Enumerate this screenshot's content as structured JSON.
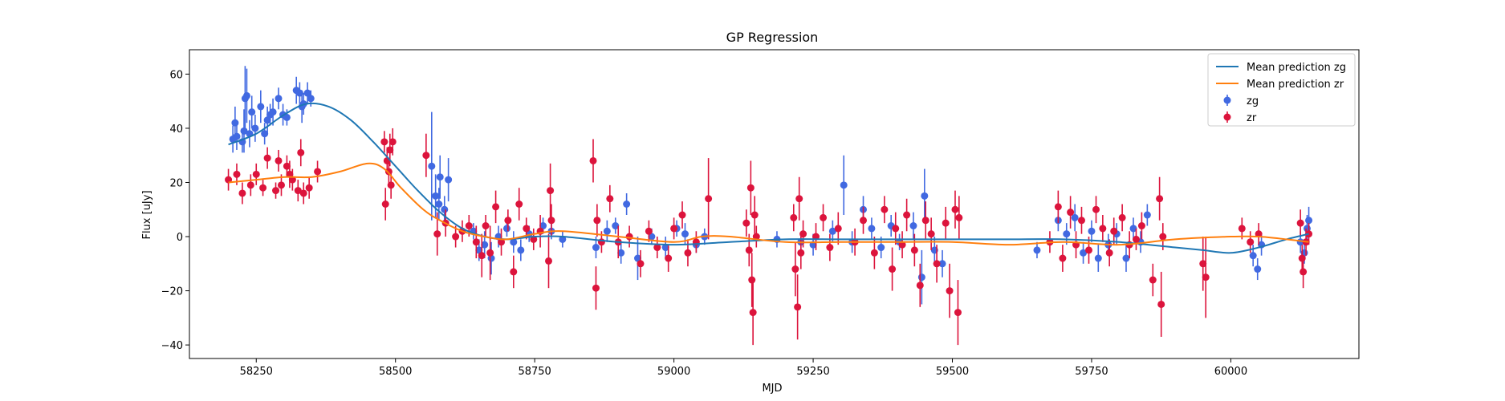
{
  "chart_data": {
    "type": "scatter",
    "title": "GP Regression",
    "xlabel": "MJD",
    "ylabel": "Flux [uJy]",
    "xlim": [
      58130,
      60230
    ],
    "ylim": [
      -45,
      69
    ],
    "xticks": [
      58250,
      58500,
      58750,
      59000,
      59250,
      59500,
      59750,
      60000
    ],
    "yticks": [
      -40,
      -20,
      0,
      20,
      40,
      60
    ],
    "legend_position": "top-right",
    "grid": false,
    "legend": [
      "Mean prediction zg",
      "Mean prediction zr",
      "zg",
      "zr"
    ],
    "lines": [
      {
        "name": "Mean prediction zg",
        "color": "#1f77b4",
        "x": [
          58200,
          58250,
          58300,
          58340,
          58380,
          58420,
          58460,
          58500,
          58540,
          58580,
          58620,
          58660,
          58700,
          58750,
          58800,
          58900,
          59000,
          59100,
          59200,
          59300,
          59400,
          59500,
          59600,
          59700,
          59800,
          59900,
          59950,
          60000,
          60050,
          60100,
          60140
        ],
        "y": [
          34,
          38,
          45,
          49,
          48,
          43,
          35,
          26,
          17,
          9,
          3,
          0,
          -1,
          0,
          0,
          -2,
          -3,
          -2,
          -1,
          -1,
          -1,
          -1,
          -1,
          -1,
          -2,
          -4,
          -5,
          -6,
          -4,
          -1,
          1
        ]
      },
      {
        "name": "Mean prediction zr",
        "color": "#ff7f0e",
        "x": [
          58200,
          58250,
          58300,
          58350,
          58400,
          58450,
          58480,
          58510,
          58550,
          58580,
          58620,
          58660,
          58700,
          58750,
          58800,
          58900,
          59000,
          59050,
          59100,
          59200,
          59300,
          59400,
          59500,
          59600,
          59700,
          59800,
          59900,
          60000,
          60050,
          60100,
          60140
        ],
        "y": [
          20,
          21,
          22,
          22,
          24,
          27,
          25,
          18,
          10,
          6,
          2,
          0,
          -1,
          1,
          2,
          0,
          -2,
          0,
          0,
          -2,
          -2,
          -2,
          -2,
          -3,
          -2,
          -3,
          -1,
          0,
          0,
          -1,
          -2
        ]
      }
    ],
    "series": [
      {
        "name": "zg",
        "color": "#4169e1",
        "points": [
          [
            58208,
            36,
            5
          ],
          [
            58212,
            42,
            6
          ],
          [
            58215,
            37,
            5
          ],
          [
            58225,
            35,
            4
          ],
          [
            58228,
            39,
            8
          ],
          [
            58230,
            51,
            12
          ],
          [
            58233,
            52,
            10
          ],
          [
            58238,
            38,
            5
          ],
          [
            58242,
            46,
            6
          ],
          [
            58248,
            40,
            5
          ],
          [
            58258,
            48,
            6
          ],
          [
            58265,
            38,
            4
          ],
          [
            58270,
            43,
            5
          ],
          [
            58275,
            45,
            4
          ],
          [
            58280,
            46,
            5
          ],
          [
            58290,
            51,
            4
          ],
          [
            58298,
            45,
            4
          ],
          [
            58305,
            44,
            3
          ],
          [
            58322,
            54,
            5
          ],
          [
            58328,
            53,
            4
          ],
          [
            58332,
            48,
            6
          ],
          [
            58335,
            49,
            4
          ],
          [
            58342,
            53,
            4
          ],
          [
            58348,
            51,
            3
          ],
          [
            58580,
            22,
            8
          ],
          [
            58565,
            26,
            20
          ],
          [
            58572,
            15,
            8
          ],
          [
            58578,
            12,
            6
          ],
          [
            58588,
            10,
            5
          ],
          [
            58595,
            21,
            8
          ],
          [
            58640,
            2,
            3
          ],
          [
            58650,
            -5,
            4
          ],
          [
            58660,
            -3,
            5
          ],
          [
            58672,
            -8,
            6
          ],
          [
            58685,
            0,
            4
          ],
          [
            58700,
            3,
            3
          ],
          [
            58712,
            -2,
            4
          ],
          [
            58725,
            -5,
            4
          ],
          [
            58740,
            1,
            3
          ],
          [
            58765,
            4,
            3
          ],
          [
            58780,
            2,
            3
          ],
          [
            58800,
            -1,
            3
          ],
          [
            58860,
            -4,
            4
          ],
          [
            58880,
            2,
            4
          ],
          [
            58895,
            4,
            3
          ],
          [
            58905,
            -6,
            4
          ],
          [
            58915,
            12,
            4
          ],
          [
            58935,
            -8,
            8
          ],
          [
            58960,
            0,
            3
          ],
          [
            58985,
            -4,
            4
          ],
          [
            59005,
            3,
            3
          ],
          [
            59020,
            1,
            4
          ],
          [
            59040,
            -3,
            3
          ],
          [
            59055,
            0,
            3
          ],
          [
            59185,
            -1,
            3
          ],
          [
            59228,
            -2,
            3
          ],
          [
            59250,
            -3,
            4
          ],
          [
            59285,
            2,
            4
          ],
          [
            59305,
            19,
            11
          ],
          [
            59320,
            -2,
            4
          ],
          [
            59340,
            10,
            5
          ],
          [
            59355,
            3,
            4
          ],
          [
            59372,
            -4,
            4
          ],
          [
            59390,
            4,
            4
          ],
          [
            59405,
            -2,
            3
          ],
          [
            59430,
            4,
            5
          ],
          [
            59445,
            -15,
            10
          ],
          [
            59450,
            15,
            10
          ],
          [
            59468,
            -5,
            5
          ],
          [
            59482,
            -10,
            5
          ],
          [
            59652,
            -5,
            3
          ],
          [
            59690,
            6,
            4
          ],
          [
            59705,
            1,
            4
          ],
          [
            59720,
            7,
            5
          ],
          [
            59735,
            -6,
            4
          ],
          [
            59750,
            2,
            4
          ],
          [
            59762,
            -8,
            5
          ],
          [
            59780,
            -3,
            4
          ],
          [
            59795,
            1,
            4
          ],
          [
            59812,
            -8,
            5
          ],
          [
            59825,
            3,
            4
          ],
          [
            59838,
            -2,
            4
          ],
          [
            59850,
            8,
            4
          ],
          [
            60040,
            -7,
            4
          ],
          [
            60048,
            -12,
            4
          ],
          [
            60055,
            -3,
            4
          ],
          [
            60125,
            -2,
            4
          ],
          [
            60132,
            -6,
            4
          ],
          [
            60137,
            3,
            5
          ],
          [
            60140,
            6,
            5
          ]
        ]
      },
      {
        "name": "zr",
        "color": "#dc143c",
        "points": [
          [
            58200,
            21,
            4
          ],
          [
            58215,
            23,
            4
          ],
          [
            58225,
            16,
            4
          ],
          [
            58240,
            19,
            4
          ],
          [
            58250,
            23,
            4
          ],
          [
            58262,
            18,
            3
          ],
          [
            58270,
            29,
            4
          ],
          [
            58285,
            17,
            3
          ],
          [
            58290,
            28,
            4
          ],
          [
            58295,
            19,
            4
          ],
          [
            58305,
            26,
            4
          ],
          [
            58310,
            23,
            5
          ],
          [
            58315,
            21,
            4
          ],
          [
            58325,
            17,
            4
          ],
          [
            58330,
            31,
            5
          ],
          [
            58335,
            16,
            4
          ],
          [
            58345,
            18,
            4
          ],
          [
            58360,
            24,
            4
          ],
          [
            58480,
            35,
            4
          ],
          [
            58482,
            12,
            6
          ],
          [
            58485,
            28,
            5
          ],
          [
            58488,
            24,
            5
          ],
          [
            58490,
            32,
            6
          ],
          [
            58492,
            19,
            5
          ],
          [
            58495,
            35,
            5
          ],
          [
            58555,
            30,
            8
          ],
          [
            58575,
            1,
            8
          ],
          [
            58590,
            5,
            5
          ],
          [
            58608,
            0,
            4
          ],
          [
            58620,
            2,
            4
          ],
          [
            58632,
            4,
            4
          ],
          [
            58645,
            -2,
            6
          ],
          [
            58655,
            -7,
            8
          ],
          [
            58662,
            4,
            4
          ],
          [
            58670,
            -6,
            10
          ],
          [
            58680,
            11,
            6
          ],
          [
            58690,
            -2,
            5
          ],
          [
            58702,
            6,
            4
          ],
          [
            58712,
            -13,
            6
          ],
          [
            58722,
            12,
            6
          ],
          [
            58735,
            3,
            4
          ],
          [
            58748,
            -1,
            4
          ],
          [
            58760,
            2,
            6
          ],
          [
            58775,
            -9,
            10
          ],
          [
            58778,
            17,
            10
          ],
          [
            58780,
            6,
            6
          ],
          [
            58855,
            28,
            8
          ],
          [
            58860,
            -19,
            8
          ],
          [
            58862,
            6,
            6
          ],
          [
            58870,
            -2,
            4
          ],
          [
            58885,
            14,
            5
          ],
          [
            58900,
            -2,
            6
          ],
          [
            58920,
            0,
            4
          ],
          [
            58940,
            -10,
            5
          ],
          [
            58955,
            2,
            4
          ],
          [
            58970,
            -4,
            4
          ],
          [
            58990,
            -8,
            5
          ],
          [
            59000,
            3,
            4
          ],
          [
            59015,
            8,
            5
          ],
          [
            59025,
            -6,
            5
          ],
          [
            59040,
            -2,
            4
          ],
          [
            59062,
            14,
            15
          ],
          [
            59130,
            5,
            5
          ],
          [
            59135,
            -5,
            6
          ],
          [
            59138,
            18,
            10
          ],
          [
            59140,
            -16,
            10
          ],
          [
            59142,
            -28,
            12
          ],
          [
            59145,
            8,
            7
          ],
          [
            59148,
            0,
            4
          ],
          [
            59215,
            7,
            5
          ],
          [
            59218,
            -12,
            10
          ],
          [
            59222,
            -26,
            12
          ],
          [
            59225,
            14,
            8
          ],
          [
            59228,
            -6,
            6
          ],
          [
            59232,
            1,
            5
          ],
          [
            59255,
            0,
            5
          ],
          [
            59268,
            7,
            5
          ],
          [
            59280,
            -4,
            5
          ],
          [
            59295,
            3,
            6
          ],
          [
            59325,
            -2,
            5
          ],
          [
            59340,
            6,
            5
          ],
          [
            59360,
            -6,
            6
          ],
          [
            59378,
            10,
            5
          ],
          [
            59392,
            -12,
            8
          ],
          [
            59398,
            3,
            6
          ],
          [
            59410,
            -3,
            5
          ],
          [
            59418,
            8,
            6
          ],
          [
            59432,
            -5,
            6
          ],
          [
            59442,
            -18,
            8
          ],
          [
            59452,
            6,
            7
          ],
          [
            59462,
            1,
            6
          ],
          [
            59472,
            -10,
            7
          ],
          [
            59488,
            5,
            6
          ],
          [
            59495,
            -20,
            10
          ],
          [
            59505,
            10,
            7
          ],
          [
            59510,
            -28,
            12
          ],
          [
            59512,
            7,
            8
          ],
          [
            59675,
            -2,
            4
          ],
          [
            59690,
            11,
            6
          ],
          [
            59698,
            -8,
            5
          ],
          [
            59712,
            9,
            6
          ],
          [
            59722,
            -3,
            5
          ],
          [
            59732,
            6,
            5
          ],
          [
            59745,
            -5,
            5
          ],
          [
            59758,
            10,
            5
          ],
          [
            59770,
            3,
            5
          ],
          [
            59782,
            -6,
            5
          ],
          [
            59790,
            2,
            5
          ],
          [
            59805,
            7,
            5
          ],
          [
            59818,
            -3,
            5
          ],
          [
            59830,
            -1,
            4
          ],
          [
            59840,
            4,
            5
          ],
          [
            59860,
            -16,
            6
          ],
          [
            59872,
            14,
            8
          ],
          [
            59875,
            -25,
            12
          ],
          [
            59878,
            0,
            5
          ],
          [
            59950,
            -10,
            10
          ],
          [
            59955,
            -15,
            15
          ],
          [
            60020,
            3,
            4
          ],
          [
            60035,
            -2,
            4
          ],
          [
            60050,
            1,
            4
          ],
          [
            60125,
            5,
            5
          ],
          [
            60128,
            -8,
            5
          ],
          [
            60130,
            -13,
            6
          ],
          [
            60135,
            -2,
            5
          ],
          [
            60140,
            1,
            4
          ]
        ]
      }
    ]
  }
}
